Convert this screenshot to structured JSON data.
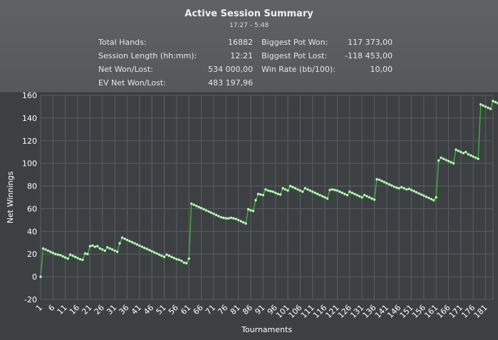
{
  "summary": {
    "title": "Active Session Summary",
    "time_range": "17:27 - 5:48",
    "left": [
      {
        "label": "Total Hands:",
        "value": "16882"
      },
      {
        "label": "Session Length (hh:mm):",
        "value": "12:21"
      },
      {
        "label": "Net Won/Lost:",
        "value": "534 000,00"
      },
      {
        "label": "EV Net Won/Lost:",
        "value": "483 197,96"
      }
    ],
    "right": [
      {
        "label": "Biggest Pot Won:",
        "value": "117 373,00"
      },
      {
        "label": "Biggest Pot Lost:",
        "value": "-118 453,00"
      },
      {
        "label": "Win Rate (bb/100):",
        "value": "10,00"
      }
    ]
  },
  "colors": {
    "line": "#3fb83f",
    "point": "#b8ffb8",
    "grid": "#5a5e62",
    "plot_bg": "#3d4043",
    "panel_bg": "#5a5d5f"
  },
  "chart_data": {
    "type": "line",
    "xlabel": "Tournaments",
    "ylabel": "Net Winnings",
    "xlim": [
      1,
      184
    ],
    "ylim": [
      -20,
      160
    ],
    "y_ticks": [
      -20,
      0,
      20,
      40,
      60,
      80,
      100,
      120,
      140,
      160
    ],
    "x_ticks": [
      1,
      6,
      11,
      16,
      21,
      26,
      31,
      36,
      41,
      46,
      51,
      56,
      61,
      66,
      71,
      76,
      81,
      86,
      91,
      96,
      101,
      106,
      111,
      116,
      121,
      126,
      131,
      136,
      141,
      146,
      151,
      156,
      161,
      166,
      171,
      176,
      181
    ],
    "grid": true,
    "series": [
      {
        "values": [
          0,
          25,
          24,
          23,
          22,
          21,
          20,
          19.5,
          19,
          18,
          17,
          16,
          19.5,
          18.5,
          17.5,
          16.5,
          15.5,
          15,
          20.5,
          20,
          27,
          27.5,
          26.5,
          27,
          25,
          24,
          23,
          26,
          25,
          24,
          23,
          22,
          29.5,
          34.5,
          33.5,
          32.5,
          31.5,
          30.5,
          29.5,
          28.5,
          27.5,
          26.5,
          25.5,
          24.5,
          23.5,
          22.5,
          21.5,
          20.5,
          19.5,
          18.5,
          17.5,
          19.5,
          18.5,
          17.5,
          16.5,
          15.5,
          15,
          14,
          12.5,
          12,
          16,
          64.5,
          63.5,
          62.5,
          61.5,
          60.5,
          59.5,
          58.5,
          57.5,
          56.5,
          55.5,
          54.5,
          53.5,
          52.5,
          52,
          51.5,
          51.5,
          52,
          51.5,
          51,
          50,
          49,
          48,
          47,
          59.5,
          58.5,
          58,
          67.5,
          73,
          72.5,
          72,
          77,
          76,
          75.5,
          75,
          74,
          73,
          72.5,
          78,
          77,
          76,
          80,
          79,
          78,
          77,
          76,
          75,
          78,
          77,
          76,
          75,
          74,
          73,
          72,
          71,
          70,
          69,
          76.5,
          77,
          76.5,
          76,
          75,
          74,
          73,
          72,
          75,
          74,
          73,
          72,
          71,
          70,
          72,
          71,
          70,
          69,
          68,
          86,
          85.5,
          84.5,
          83.5,
          82.5,
          81.5,
          80.5,
          79.5,
          78.5,
          78,
          79,
          78,
          77,
          77.5,
          76.5,
          75.5,
          74.5,
          73.5,
          72.5,
          71.5,
          70.5,
          69.5,
          68.5,
          67.5,
          70,
          102.5,
          105,
          104,
          103,
          102,
          101,
          100,
          112,
          111,
          110,
          109,
          110,
          108,
          107,
          106,
          105,
          104,
          152,
          151,
          150,
          149,
          148,
          155,
          154,
          153,
          154,
          152,
          151
        ]
      }
    ]
  }
}
